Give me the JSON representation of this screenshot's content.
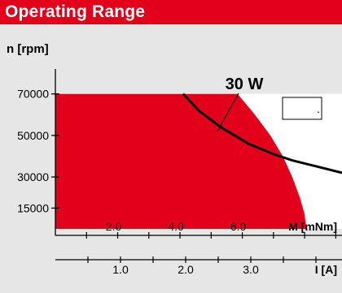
{
  "header": {
    "title": "Operating Range"
  },
  "chart_data": {
    "type": "area",
    "ylabel": "n [rpm]",
    "x_torque": {
      "label": "M [mNm]",
      "ticks": [
        "2.0",
        "4.0",
        "6.0"
      ],
      "tick_values": [
        2,
        4,
        6
      ],
      "range": [
        0,
        9.2
      ]
    },
    "x_current": {
      "label": "I [A]",
      "ticks": [
        "1.0",
        "2.0",
        "3.0"
      ],
      "tick_values": [
        1,
        2,
        3
      ],
      "range": [
        0,
        4.4
      ]
    },
    "y": {
      "ticks": [
        "70000",
        "50000",
        "30000",
        "15000"
      ],
      "tick_values": [
        70000,
        50000,
        30000,
        15000
      ],
      "range": [
        5000,
        82000
      ]
    },
    "continuous_operation": {
      "color": "#e3001b",
      "boundary": [
        [
          0,
          70000
        ],
        [
          5.85,
          70000
        ],
        [
          6.4,
          60000
        ],
        [
          6.9,
          50000
        ],
        [
          7.3,
          40000
        ],
        [
          7.6,
          30000
        ],
        [
          7.85,
          20000
        ],
        [
          8.0,
          12000
        ],
        [
          8.05,
          5000
        ]
      ]
    },
    "power_curve": {
      "label": "30 W",
      "points": [
        [
          4.1,
          70000
        ],
        [
          4.6,
          62000
        ],
        [
          5.3,
          54000
        ],
        [
          6.2,
          46000
        ],
        [
          7.0,
          41000
        ],
        [
          7.6,
          38000
        ],
        [
          8.4,
          35000
        ],
        [
          9.2,
          32000
        ]
      ]
    },
    "legend_box": {
      "text": "."
    }
  }
}
